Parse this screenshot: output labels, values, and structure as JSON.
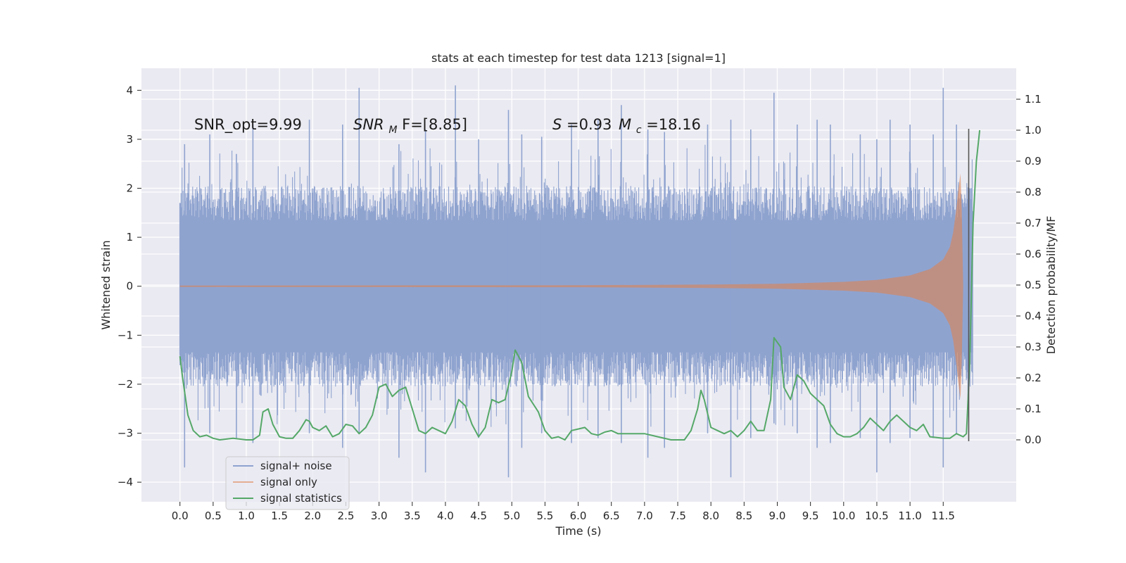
{
  "chart_data": {
    "type": "line",
    "title": "stats at each timestep for test data 1213 [signal=1]",
    "xlabel": "Time (s)",
    "ylabel_left": "Whitened strain",
    "ylabel_right": "Detection probability/MF",
    "xlim": [
      -0.58,
      12.6
    ],
    "ylim_left": [
      -4.4,
      4.45
    ],
    "ylim_right": [
      -0.2,
      1.2
    ],
    "x_ticks": [
      "0.0",
      "0.5",
      "1.0",
      "1.5",
      "2.0",
      "2.5",
      "3.0",
      "3.5",
      "4.0",
      "4.5",
      "5.0",
      "5.5",
      "6.0",
      "6.5",
      "7.0",
      "7.5",
      "8.0",
      "8.5",
      "9.0",
      "9.5",
      "10.0",
      "10.5",
      "11.0",
      "11.5"
    ],
    "y_ticks_left": [
      "4",
      "3",
      "2",
      "1",
      "0",
      "−1",
      "−2",
      "−3",
      "−4"
    ],
    "y_ticks_right": [
      "1.1",
      "1.0",
      "0.9",
      "0.8",
      "0.7",
      "0.6",
      "0.5",
      "0.4",
      "0.3",
      "0.2",
      "0.1",
      "0.0"
    ],
    "grid": true,
    "legend_placement": "lower-left",
    "annotations": {
      "snr_opt": "SNR_opt=9.99",
      "snr_mf_main": "SNR",
      "snr_mf_sub": "M",
      "snr_mf_rest": "F=[8.85]",
      "s_main": "S",
      "s_rest": "=0.93",
      "mc_main": "M",
      "mc_sub": "c",
      "mc_rest": "=18.16"
    },
    "series": [
      {
        "name": "signal+ noise",
        "color": "#8fa3cf",
        "x_range": [
          0.0,
          11.95
        ],
        "envelope_note": "dense noise, mostly within ±2, peaks to about ±4",
        "peaks": [
          [
            0.0,
            1.7,
            -1.4
          ],
          [
            0.07,
            2.9,
            -3.7
          ],
          [
            0.45,
            3.1,
            -3.0
          ],
          [
            0.85,
            2.7,
            -3.1
          ],
          [
            1.1,
            3.3,
            -3.2
          ],
          [
            1.95,
            3.4,
            -3.0
          ],
          [
            2.45,
            3.3,
            -3.3
          ],
          [
            2.7,
            4.05,
            -3.0
          ],
          [
            3.3,
            2.9,
            -3.5
          ],
          [
            3.7,
            3.2,
            -3.8
          ],
          [
            4.15,
            4.1,
            -2.9
          ],
          [
            4.5,
            3.0,
            -3.1
          ],
          [
            4.95,
            3.6,
            -3.9
          ],
          [
            5.15,
            3.1,
            -3.3
          ],
          [
            5.45,
            3.05,
            -3.0
          ],
          [
            5.9,
            3.3,
            -3.2
          ],
          [
            6.3,
            3.4,
            -3.1
          ],
          [
            6.65,
            3.7,
            -3.2
          ],
          [
            7.05,
            3.2,
            -3.5
          ],
          [
            7.3,
            3.15,
            -3.3
          ],
          [
            7.95,
            3.3,
            -3.0
          ],
          [
            8.3,
            3.4,
            -3.9
          ],
          [
            8.6,
            3.2,
            -3.1
          ],
          [
            8.95,
            3.95,
            -2.8
          ],
          [
            9.3,
            3.3,
            -3.0
          ],
          [
            9.6,
            3.4,
            -3.3
          ],
          [
            9.8,
            3.3,
            -3.2
          ],
          [
            10.25,
            3.1,
            -3.1
          ],
          [
            10.5,
            3.0,
            -3.8
          ],
          [
            10.7,
            3.4,
            -3.2
          ],
          [
            11.0,
            3.3,
            -3.1
          ],
          [
            11.35,
            3.1,
            -3.1
          ],
          [
            11.5,
            4.05,
            -3.7
          ],
          [
            11.7,
            3.3,
            -3.0
          ],
          [
            11.9,
            2.0,
            -1.7
          ]
        ]
      },
      {
        "name": "signal only",
        "color": "#dd8452",
        "envelope": [
          [
            0.0,
            0.015
          ],
          [
            6.0,
            0.02
          ],
          [
            8.0,
            0.035
          ],
          [
            9.0,
            0.05
          ],
          [
            10.0,
            0.09
          ],
          [
            10.5,
            0.13
          ],
          [
            11.0,
            0.22
          ],
          [
            11.3,
            0.35
          ],
          [
            11.5,
            0.55
          ],
          [
            11.6,
            0.8
          ],
          [
            11.65,
            1.1
          ],
          [
            11.7,
            1.6
          ],
          [
            11.73,
            2.0
          ],
          [
            11.76,
            2.3
          ],
          [
            11.78,
            1.5
          ],
          [
            11.8,
            0.0
          ]
        ]
      },
      {
        "name": "signal statistics",
        "color": "#55a868",
        "points": [
          [
            0.0,
            0.27
          ],
          [
            0.04,
            0.2
          ],
          [
            0.12,
            0.08
          ],
          [
            0.2,
            0.03
          ],
          [
            0.3,
            0.01
          ],
          [
            0.4,
            0.015
          ],
          [
            0.5,
            0.005
          ],
          [
            0.6,
            0.0
          ],
          [
            0.8,
            0.005
          ],
          [
            1.0,
            0.0
          ],
          [
            1.1,
            0.0
          ],
          [
            1.2,
            0.015
          ],
          [
            1.25,
            0.09
          ],
          [
            1.33,
            0.1
          ],
          [
            1.4,
            0.05
          ],
          [
            1.5,
            0.01
          ],
          [
            1.6,
            0.005
          ],
          [
            1.7,
            0.005
          ],
          [
            1.8,
            0.03
          ],
          [
            1.9,
            0.065
          ],
          [
            1.95,
            0.06
          ],
          [
            2.0,
            0.04
          ],
          [
            2.1,
            0.03
          ],
          [
            2.2,
            0.045
          ],
          [
            2.3,
            0.01
          ],
          [
            2.4,
            0.02
          ],
          [
            2.5,
            0.05
          ],
          [
            2.6,
            0.045
          ],
          [
            2.7,
            0.02
          ],
          [
            2.8,
            0.04
          ],
          [
            2.9,
            0.08
          ],
          [
            3.0,
            0.17
          ],
          [
            3.1,
            0.18
          ],
          [
            3.2,
            0.14
          ],
          [
            3.3,
            0.16
          ],
          [
            3.4,
            0.17
          ],
          [
            3.5,
            0.1
          ],
          [
            3.6,
            0.03
          ],
          [
            3.7,
            0.02
          ],
          [
            3.8,
            0.04
          ],
          [
            3.9,
            0.03
          ],
          [
            4.0,
            0.02
          ],
          [
            4.1,
            0.06
          ],
          [
            4.2,
            0.13
          ],
          [
            4.3,
            0.11
          ],
          [
            4.4,
            0.05
          ],
          [
            4.5,
            0.01
          ],
          [
            4.6,
            0.04
          ],
          [
            4.7,
            0.13
          ],
          [
            4.8,
            0.12
          ],
          [
            4.9,
            0.13
          ],
          [
            5.0,
            0.22
          ],
          [
            5.05,
            0.29
          ],
          [
            5.15,
            0.25
          ],
          [
            5.25,
            0.14
          ],
          [
            5.4,
            0.09
          ],
          [
            5.5,
            0.03
          ],
          [
            5.6,
            0.005
          ],
          [
            5.7,
            0.01
          ],
          [
            5.8,
            0.0
          ],
          [
            5.9,
            0.03
          ],
          [
            6.0,
            0.035
          ],
          [
            6.1,
            0.04
          ],
          [
            6.2,
            0.02
          ],
          [
            6.3,
            0.015
          ],
          [
            6.4,
            0.025
          ],
          [
            6.5,
            0.03
          ],
          [
            6.6,
            0.02
          ],
          [
            6.8,
            0.02
          ],
          [
            7.0,
            0.02
          ],
          [
            7.2,
            0.01
          ],
          [
            7.4,
            0.0
          ],
          [
            7.6,
            0.0
          ],
          [
            7.7,
            0.03
          ],
          [
            7.8,
            0.1
          ],
          [
            7.85,
            0.16
          ],
          [
            7.9,
            0.13
          ],
          [
            8.0,
            0.04
          ],
          [
            8.1,
            0.03
          ],
          [
            8.2,
            0.02
          ],
          [
            8.3,
            0.03
          ],
          [
            8.4,
            0.01
          ],
          [
            8.5,
            0.03
          ],
          [
            8.6,
            0.06
          ],
          [
            8.7,
            0.03
          ],
          [
            8.8,
            0.03
          ],
          [
            8.9,
            0.13
          ],
          [
            8.95,
            0.33
          ],
          [
            9.05,
            0.3
          ],
          [
            9.1,
            0.17
          ],
          [
            9.2,
            0.13
          ],
          [
            9.3,
            0.21
          ],
          [
            9.4,
            0.19
          ],
          [
            9.5,
            0.15
          ],
          [
            9.6,
            0.13
          ],
          [
            9.7,
            0.11
          ],
          [
            9.8,
            0.05
          ],
          [
            9.9,
            0.02
          ],
          [
            10.0,
            0.01
          ],
          [
            10.1,
            0.01
          ],
          [
            10.2,
            0.02
          ],
          [
            10.3,
            0.04
          ],
          [
            10.4,
            0.07
          ],
          [
            10.5,
            0.05
          ],
          [
            10.6,
            0.03
          ],
          [
            10.7,
            0.06
          ],
          [
            10.8,
            0.08
          ],
          [
            10.9,
            0.06
          ],
          [
            11.0,
            0.04
          ],
          [
            11.1,
            0.03
          ],
          [
            11.2,
            0.05
          ],
          [
            11.3,
            0.01
          ],
          [
            11.5,
            0.005
          ],
          [
            11.6,
            0.005
          ],
          [
            11.7,
            0.02
          ],
          [
            11.8,
            0.01
          ],
          [
            11.85,
            0.02
          ],
          [
            11.9,
            0.25
          ],
          [
            11.95,
            0.7
          ],
          [
            12.0,
            0.9
          ],
          [
            12.05,
            1.0
          ]
        ]
      }
    ]
  }
}
